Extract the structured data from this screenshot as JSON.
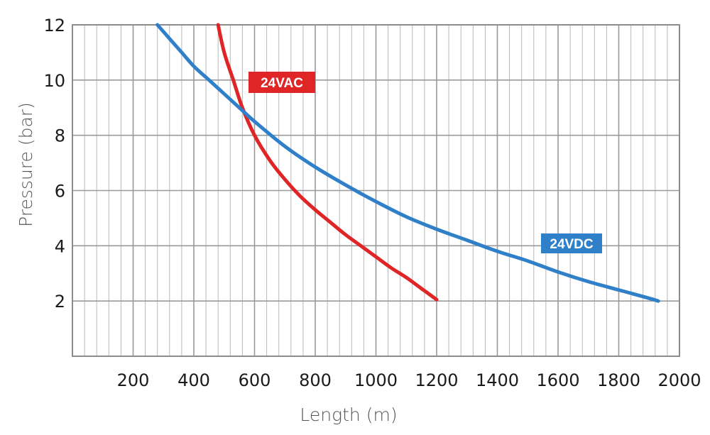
{
  "chart_data": {
    "type": "line",
    "title": "",
    "xlabel": "Length (m)",
    "ylabel": "Pressure (bar)",
    "xlim": [
      0,
      2000
    ],
    "ylim": [
      0,
      12
    ],
    "x_ticks": [
      200,
      400,
      600,
      800,
      1000,
      1200,
      1400,
      1600,
      1800,
      2000
    ],
    "y_ticks": [
      2,
      4,
      6,
      8,
      10,
      12
    ],
    "x_minor_step": 40,
    "grid": true,
    "series": [
      {
        "name": "24VAC",
        "color": "#e02526",
        "x": [
          480,
          500,
          530,
          560,
          600,
          650,
          700,
          750,
          800,
          850,
          900,
          950,
          1000,
          1050,
          1100,
          1150,
          1200
        ],
        "y": [
          12,
          11,
          10,
          9,
          8,
          7.1,
          6.4,
          5.8,
          5.3,
          4.85,
          4.4,
          4.0,
          3.6,
          3.2,
          2.85,
          2.45,
          2.05
        ]
      },
      {
        "name": "24VDC",
        "color": "#2f80c8",
        "x": [
          280,
          320,
          360,
          400,
          450,
          500,
          550,
          600,
          700,
          800,
          900,
          1000,
          1100,
          1200,
          1300,
          1400,
          1500,
          1600,
          1700,
          1800,
          1900,
          1930
        ],
        "y": [
          12,
          11.5,
          11.0,
          10.5,
          10.0,
          9.5,
          9.0,
          8.5,
          7.6,
          6.85,
          6.2,
          5.6,
          5.05,
          4.6,
          4.2,
          3.8,
          3.45,
          3.05,
          2.7,
          2.4,
          2.1,
          2.0
        ]
      }
    ],
    "annotations": [
      {
        "text": "24VAC",
        "series": "24VAC"
      },
      {
        "text": "24VDC",
        "series": "24VDC"
      }
    ]
  }
}
